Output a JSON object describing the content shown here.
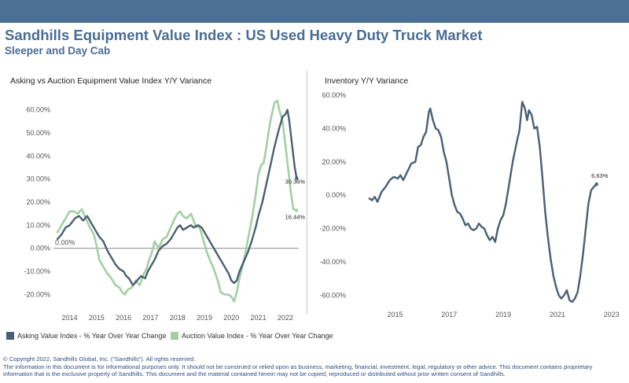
{
  "header": {
    "title": "Sandhills Equipment Value Index : US Used Heavy Duty Truck Market",
    "subtitle": "Sleeper and Day Cab"
  },
  "legend": {
    "asking": "Asking Value Index - % Year Over Year Change",
    "auction": "Auction Value Index - % Year Over Year Change"
  },
  "footer": {
    "line1": "© Copyright 2022, Sandhills Global, Inc. (“Sandhills”). All rights reserved.",
    "line2": "The information in this document is for informational purposes only.  It should not be construed or relied upon as business, marketing, financial, investment, legal, regulatory or other advice. This document contains proprietary",
    "line3": "information that is the exclusive property of Sandhills. This document and the material contained herein may not be copied, reproduced or distributed without prior written consent of Sandhills."
  },
  "colors": {
    "asking": "#4a5f73",
    "auction": "#a3cfa4",
    "inventory": "#4a5f73",
    "banner": "#4c6f96",
    "title": "#4a6d93"
  },
  "chart_data": [
    {
      "type": "line",
      "title": "Asking vs Auction Equipment Value Index Y/Y Variance",
      "x_ticks": [
        "2014",
        "2015",
        "2016",
        "2017",
        "2018",
        "2019",
        "2020",
        "2021",
        "2022"
      ],
      "y_ticks": [
        "60.00%",
        "50.00%",
        "40.00%",
        "30.00%",
        "20.00%",
        "10.00%",
        "0.00%",
        "-10.00%",
        "-20.00%"
      ],
      "ylim": [
        -27,
        66
      ],
      "xlim": [
        2013.4,
        2022.5
      ],
      "zero_label": "0.00%",
      "grid": false,
      "legend_position": "bottom",
      "annotations": [
        {
          "text": "30.36%",
          "series": "Asking Value Index - % Year Over Year Change"
        },
        {
          "text": "16.44%",
          "series": "Auction Value Index - % Year Over Year Change"
        }
      ],
      "series": [
        {
          "name": "Asking Value Index - % Year Over Year Change",
          "color": "#4a5f73",
          "points": [
            [
              2013.55,
              4
            ],
            [
              2013.7,
              6
            ],
            [
              2013.85,
              9
            ],
            [
              2014.0,
              10
            ],
            [
              2014.2,
              13
            ],
            [
              2014.35,
              14
            ],
            [
              2014.5,
              12
            ],
            [
              2014.65,
              14
            ],
            [
              2014.8,
              11
            ],
            [
              2014.95,
              8
            ],
            [
              2015.1,
              5
            ],
            [
              2015.25,
              3
            ],
            [
              2015.4,
              -1
            ],
            [
              2015.55,
              -4
            ],
            [
              2015.7,
              -7
            ],
            [
              2015.85,
              -9
            ],
            [
              2016.0,
              -10
            ],
            [
              2016.1,
              -12
            ],
            [
              2016.2,
              -13
            ],
            [
              2016.35,
              -16
            ],
            [
              2016.5,
              -14
            ],
            [
              2016.65,
              -12
            ],
            [
              2016.8,
              -13
            ],
            [
              2016.9,
              -10
            ],
            [
              2017.0,
              -8
            ],
            [
              2017.15,
              -5
            ],
            [
              2017.3,
              -1
            ],
            [
              2017.45,
              1
            ],
            [
              2017.6,
              2
            ],
            [
              2017.75,
              4
            ],
            [
              2017.9,
              7
            ],
            [
              2018.0,
              9
            ],
            [
              2018.1,
              10
            ],
            [
              2018.2,
              8
            ],
            [
              2018.35,
              9
            ],
            [
              2018.5,
              10
            ],
            [
              2018.6,
              9
            ],
            [
              2018.75,
              10
            ],
            [
              2018.9,
              9
            ],
            [
              2019.0,
              7
            ],
            [
              2019.15,
              4
            ],
            [
              2019.3,
              1
            ],
            [
              2019.45,
              -2
            ],
            [
              2019.6,
              -5
            ],
            [
              2019.75,
              -8
            ],
            [
              2019.9,
              -11
            ],
            [
              2020.0,
              -14
            ],
            [
              2020.1,
              -15
            ],
            [
              2020.2,
              -14
            ],
            [
              2020.3,
              -10
            ],
            [
              2020.45,
              -6
            ],
            [
              2020.6,
              -2
            ],
            [
              2020.75,
              3
            ],
            [
              2020.9,
              9
            ],
            [
              2021.0,
              14
            ],
            [
              2021.15,
              20
            ],
            [
              2021.3,
              28
            ],
            [
              2021.45,
              36
            ],
            [
              2021.6,
              44
            ],
            [
              2021.75,
              51
            ],
            [
              2021.9,
              57
            ],
            [
              2022.0,
              58
            ],
            [
              2022.08,
              60
            ],
            [
              2022.15,
              55
            ],
            [
              2022.25,
              45
            ],
            [
              2022.35,
              35
            ],
            [
              2022.42,
              30.36
            ]
          ]
        },
        {
          "name": "Auction Value Index - % Year Over Year Change",
          "color": "#a3cfa4",
          "points": [
            [
              2013.55,
              7
            ],
            [
              2013.7,
              10
            ],
            [
              2013.85,
              13
            ],
            [
              2014.0,
              16
            ],
            [
              2014.15,
              16
            ],
            [
              2014.3,
              15
            ],
            [
              2014.45,
              17
            ],
            [
              2014.6,
              13
            ],
            [
              2014.75,
              9
            ],
            [
              2014.9,
              6
            ],
            [
              2015.0,
              1
            ],
            [
              2015.1,
              -5
            ],
            [
              2015.25,
              -8
            ],
            [
              2015.4,
              -11
            ],
            [
              2015.55,
              -13
            ],
            [
              2015.7,
              -16
            ],
            [
              2015.85,
              -17
            ],
            [
              2015.95,
              -19
            ],
            [
              2016.05,
              -20
            ],
            [
              2016.15,
              -18
            ],
            [
              2016.3,
              -17
            ],
            [
              2016.45,
              -14
            ],
            [
              2016.6,
              -16
            ],
            [
              2016.75,
              -11
            ],
            [
              2016.85,
              -9
            ],
            [
              2016.95,
              -5
            ],
            [
              2017.05,
              -2
            ],
            [
              2017.15,
              3
            ],
            [
              2017.3,
              0
            ],
            [
              2017.45,
              4
            ],
            [
              2017.6,
              5
            ],
            [
              2017.75,
              9
            ],
            [
              2017.9,
              13
            ],
            [
              2018.0,
              15
            ],
            [
              2018.1,
              16
            ],
            [
              2018.2,
              14
            ],
            [
              2018.35,
              13
            ],
            [
              2018.5,
              15
            ],
            [
              2018.6,
              12
            ],
            [
              2018.7,
              9
            ],
            [
              2018.8,
              10
            ],
            [
              2018.9,
              6
            ],
            [
              2019.0,
              2
            ],
            [
              2019.1,
              -2
            ],
            [
              2019.2,
              -5
            ],
            [
              2019.35,
              -9
            ],
            [
              2019.5,
              -14
            ],
            [
              2019.6,
              -19
            ],
            [
              2019.75,
              -20
            ],
            [
              2019.9,
              -20
            ],
            [
              2020.0,
              -21
            ],
            [
              2020.1,
              -23
            ],
            [
              2020.2,
              -19
            ],
            [
              2020.3,
              -13
            ],
            [
              2020.45,
              -6
            ],
            [
              2020.6,
              3
            ],
            [
              2020.75,
              12
            ],
            [
              2020.9,
              23
            ],
            [
              2021.0,
              32
            ],
            [
              2021.1,
              36
            ],
            [
              2021.2,
              37
            ],
            [
              2021.3,
              44
            ],
            [
              2021.4,
              52
            ],
            [
              2021.5,
              58
            ],
            [
              2021.6,
              63
            ],
            [
              2021.7,
              64
            ],
            [
              2021.8,
              59
            ],
            [
              2021.9,
              55
            ],
            [
              2022.0,
              45
            ],
            [
              2022.1,
              35
            ],
            [
              2022.2,
              25
            ],
            [
              2022.3,
              17
            ],
            [
              2022.42,
              16.44
            ]
          ]
        }
      ]
    },
    {
      "type": "line",
      "title": "Inventory Y/Y Variance",
      "x_ticks": [
        "2015",
        "2017",
        "2019",
        "2021",
        "2023"
      ],
      "y_ticks": [
        "60.00%",
        "40.00%",
        "20.00%",
        "0.00%",
        "-20.00%",
        "-40.00%",
        "-60.00%"
      ],
      "ylim": [
        -65,
        60
      ],
      "xlim": [
        2013.3,
        2023.3
      ],
      "grid": false,
      "annotations": [
        {
          "text": "6.63%",
          "series": "Inventory"
        }
      ],
      "series": [
        {
          "name": "Inventory",
          "color": "#4a5f73",
          "points": [
            [
              2014.05,
              -2
            ],
            [
              2014.15,
              -3
            ],
            [
              2014.25,
              -1
            ],
            [
              2014.35,
              -4
            ],
            [
              2014.5,
              2
            ],
            [
              2014.65,
              5
            ],
            [
              2014.8,
              9
            ],
            [
              2014.95,
              11
            ],
            [
              2015.1,
              10
            ],
            [
              2015.2,
              12
            ],
            [
              2015.3,
              9
            ],
            [
              2015.45,
              14
            ],
            [
              2015.6,
              19
            ],
            [
              2015.75,
              20
            ],
            [
              2015.85,
              29
            ],
            [
              2015.95,
              30
            ],
            [
              2016.05,
              35
            ],
            [
              2016.15,
              38
            ],
            [
              2016.25,
              50
            ],
            [
              2016.3,
              52
            ],
            [
              2016.4,
              45
            ],
            [
              2016.5,
              40
            ],
            [
              2016.6,
              39
            ],
            [
              2016.7,
              35
            ],
            [
              2016.8,
              26
            ],
            [
              2016.9,
              20
            ],
            [
              2017.0,
              10
            ],
            [
              2017.1,
              0
            ],
            [
              2017.2,
              -6
            ],
            [
              2017.3,
              -10
            ],
            [
              2017.4,
              -11
            ],
            [
              2017.5,
              -14
            ],
            [
              2017.6,
              -18
            ],
            [
              2017.7,
              -17
            ],
            [
              2017.8,
              -20
            ],
            [
              2017.9,
              -21
            ],
            [
              2018.0,
              -20
            ],
            [
              2018.1,
              -17
            ],
            [
              2018.2,
              -19
            ],
            [
              2018.3,
              -20
            ],
            [
              2018.4,
              -24
            ],
            [
              2018.5,
              -27
            ],
            [
              2018.6,
              -25
            ],
            [
              2018.7,
              -28
            ],
            [
              2018.8,
              -20
            ],
            [
              2018.9,
              -15
            ],
            [
              2019.0,
              -12
            ],
            [
              2019.1,
              -5
            ],
            [
              2019.2,
              5
            ],
            [
              2019.35,
              20
            ],
            [
              2019.5,
              32
            ],
            [
              2019.6,
              39
            ],
            [
              2019.7,
              56
            ],
            [
              2019.8,
              52
            ],
            [
              2019.88,
              45
            ],
            [
              2019.95,
              51
            ],
            [
              2020.05,
              48
            ],
            [
              2020.15,
              40
            ],
            [
              2020.25,
              41
            ],
            [
              2020.35,
              29
            ],
            [
              2020.45,
              10
            ],
            [
              2020.55,
              -10
            ],
            [
              2020.65,
              -25
            ],
            [
              2020.75,
              -38
            ],
            [
              2020.85,
              -48
            ],
            [
              2020.95,
              -55
            ],
            [
              2021.05,
              -60
            ],
            [
              2021.15,
              -62
            ],
            [
              2021.25,
              -60
            ],
            [
              2021.35,
              -57
            ],
            [
              2021.45,
              -63
            ],
            [
              2021.55,
              -64
            ],
            [
              2021.65,
              -62
            ],
            [
              2021.75,
              -58
            ],
            [
              2021.85,
              -48
            ],
            [
              2021.95,
              -35
            ],
            [
              2022.05,
              -20
            ],
            [
              2022.15,
              -5
            ],
            [
              2022.25,
              3
            ],
            [
              2022.35,
              5
            ],
            [
              2022.45,
              6.63
            ]
          ]
        }
      ]
    }
  ]
}
